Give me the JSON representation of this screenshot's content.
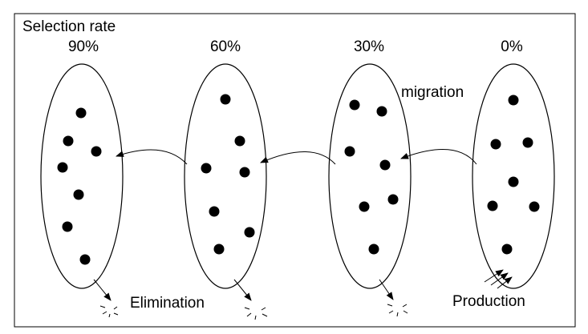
{
  "title": "Selection rate",
  "populations": [
    {
      "label": "90%"
    },
    {
      "label": "60%"
    },
    {
      "label": "30%"
    },
    {
      "label": "0%"
    }
  ],
  "annotations": {
    "migration": "migration",
    "elimination": "Elimination",
    "production": "Production"
  }
}
